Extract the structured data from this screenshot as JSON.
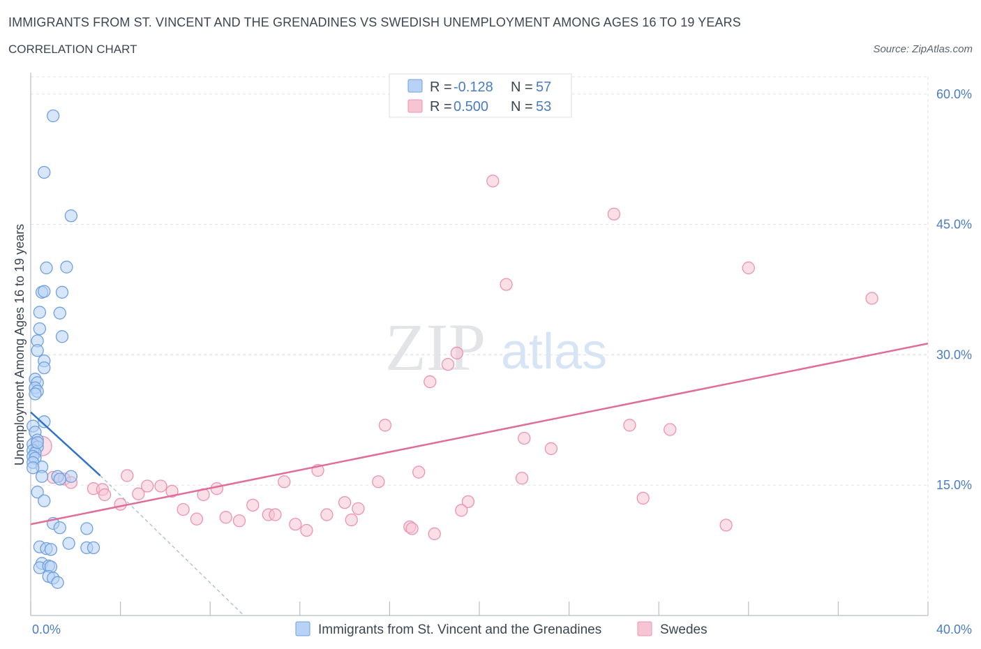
{
  "header": {
    "title": "IMMIGRANTS FROM ST. VINCENT AND THE GRENADINES VS SWEDISH UNEMPLOYMENT AMONG AGES 16 TO 19 YEARS",
    "subtitle": "CORRELATION CHART",
    "source": "Source: ZipAtlas.com"
  },
  "watermark": {
    "zip": "ZIP",
    "atlas": "atlas"
  },
  "stats_legend": {
    "rows": [
      {
        "r_label": "R =",
        "r_value": "-0.128",
        "n_label": "N =",
        "n_value": "57"
      },
      {
        "r_label": "R =",
        "r_value": "0.500",
        "n_label": "N =",
        "n_value": "53"
      }
    ]
  },
  "colors": {
    "blue_fill": "#b7d2f5",
    "blue_stroke": "#6fa0e0",
    "blue_line": "#2f72c9",
    "pink_fill": "#f7c4d4",
    "pink_stroke": "#eb93b0",
    "pink_line": "#e06c98",
    "tick_text": "#4a7cc4",
    "grid": "#dfe3e8"
  },
  "chart_data": {
    "type": "scatter",
    "title": "IMMIGRANTS FROM ST. VINCENT AND THE GRENADINES VS SWEDISH UNEMPLOYMENT AMONG AGES 16 TO 19 YEARS",
    "subtitle": "CORRELATION CHART",
    "xlabel": "",
    "ylabel": "Unemployment Among Ages 16 to 19 years",
    "xlim": [
      0,
      40
    ],
    "ylim": [
      0,
      62
    ],
    "x_tick_labels": [
      "0.0%",
      "40.0%"
    ],
    "y_ticks": [
      15,
      30,
      45,
      60
    ],
    "y_tick_labels": [
      "15.0%",
      "30.0%",
      "45.0%",
      "60.0%"
    ],
    "grid": true,
    "legend_position": "bottom-center",
    "series": [
      {
        "name": "Immigrants from St. Vincent and the Grenadines",
        "color": "#6fa0e0",
        "R": -0.128,
        "N": 57,
        "trend": {
          "x": [
            0,
            3.1
          ],
          "y": [
            23.4,
            16.1
          ],
          "dashed_extension_to": [
            9.5,
            0
          ]
        },
        "points": [
          [
            1.0,
            57.5
          ],
          [
            0.6,
            51.0
          ],
          [
            1.8,
            46.0
          ],
          [
            0.7,
            40.0
          ],
          [
            1.6,
            40.1
          ],
          [
            0.5,
            37.2
          ],
          [
            0.6,
            37.3
          ],
          [
            1.4,
            37.2
          ],
          [
            0.4,
            34.9
          ],
          [
            1.3,
            34.8
          ],
          [
            0.4,
            33.0
          ],
          [
            1.4,
            32.1
          ],
          [
            0.3,
            31.6
          ],
          [
            0.3,
            30.5
          ],
          [
            0.6,
            29.3
          ],
          [
            0.6,
            28.5
          ],
          [
            0.2,
            27.2
          ],
          [
            0.3,
            26.8
          ],
          [
            0.2,
            26.2
          ],
          [
            0.3,
            25.8
          ],
          [
            0.2,
            25.5
          ],
          [
            0.6,
            22.3
          ],
          [
            0.1,
            21.8
          ],
          [
            0.2,
            21.1
          ],
          [
            0.3,
            20.2
          ],
          [
            0.1,
            19.7
          ],
          [
            0.3,
            19.4
          ],
          [
            0.1,
            19.0
          ],
          [
            0.2,
            18.7
          ],
          [
            0.1,
            18.3
          ],
          [
            0.2,
            18.1
          ],
          [
            0.1,
            17.6
          ],
          [
            0.5,
            17.1
          ],
          [
            0.1,
            17.0
          ],
          [
            0.5,
            16.0
          ],
          [
            1.2,
            16.0
          ],
          [
            1.8,
            16.0
          ],
          [
            1.3,
            15.7
          ],
          [
            0.3,
            14.2
          ],
          [
            0.6,
            13.2
          ],
          [
            1.0,
            10.6
          ],
          [
            1.3,
            10.1
          ],
          [
            2.5,
            10.0
          ],
          [
            1.7,
            8.3
          ],
          [
            0.4,
            7.9
          ],
          [
            0.7,
            7.7
          ],
          [
            0.9,
            7.6
          ],
          [
            2.5,
            7.8
          ],
          [
            2.8,
            7.8
          ],
          [
            0.5,
            6.0
          ],
          [
            0.4,
            5.5
          ],
          [
            0.8,
            5.7
          ],
          [
            0.9,
            5.6
          ],
          [
            0.8,
            4.5
          ],
          [
            1.0,
            4.3
          ],
          [
            1.2,
            3.8
          ],
          [
            0.3,
            19.9
          ]
        ]
      },
      {
        "name": "Swedes",
        "color": "#eb93b0",
        "R": 0.5,
        "N": 53,
        "trend": {
          "x": [
            0,
            40
          ],
          "y": [
            10.5,
            31.3
          ]
        },
        "points": [
          [
            20.6,
            50.0
          ],
          [
            26.0,
            46.2
          ],
          [
            32.0,
            40.0
          ],
          [
            21.2,
            38.1
          ],
          [
            37.5,
            36.5
          ],
          [
            19.0,
            30.2
          ],
          [
            18.6,
            28.9
          ],
          [
            17.8,
            26.9
          ],
          [
            15.8,
            21.9
          ],
          [
            26.7,
            21.9
          ],
          [
            28.5,
            21.4
          ],
          [
            22.0,
            20.4
          ],
          [
            23.2,
            19.2
          ],
          [
            0.5,
            19.5
          ],
          [
            12.8,
            16.7
          ],
          [
            17.3,
            16.5
          ],
          [
            4.3,
            16.1
          ],
          [
            21.9,
            15.8
          ],
          [
            1.0,
            15.9
          ],
          [
            1.5,
            15.7
          ],
          [
            11.3,
            15.4
          ],
          [
            15.5,
            15.4
          ],
          [
            1.8,
            15.3
          ],
          [
            5.2,
            14.9
          ],
          [
            5.8,
            14.9
          ],
          [
            8.3,
            14.6
          ],
          [
            2.8,
            14.6
          ],
          [
            3.2,
            14.5
          ],
          [
            6.3,
            14.3
          ],
          [
            4.8,
            14.0
          ],
          [
            3.3,
            13.9
          ],
          [
            7.7,
            13.9
          ],
          [
            27.3,
            13.5
          ],
          [
            19.5,
            13.1
          ],
          [
            14.0,
            13.0
          ],
          [
            4.0,
            12.8
          ],
          [
            9.9,
            12.7
          ],
          [
            14.6,
            12.3
          ],
          [
            6.8,
            12.2
          ],
          [
            19.2,
            12.1
          ],
          [
            10.6,
            11.6
          ],
          [
            10.9,
            11.6
          ],
          [
            13.2,
            11.6
          ],
          [
            8.7,
            11.3
          ],
          [
            7.4,
            11.1
          ],
          [
            9.3,
            10.9
          ],
          [
            14.3,
            11.0
          ],
          [
            11.8,
            10.5
          ],
          [
            31.0,
            10.4
          ],
          [
            16.9,
            10.2
          ],
          [
            17.0,
            10.0
          ],
          [
            12.3,
            9.8
          ],
          [
            18.0,
            9.4
          ]
        ]
      }
    ]
  }
}
